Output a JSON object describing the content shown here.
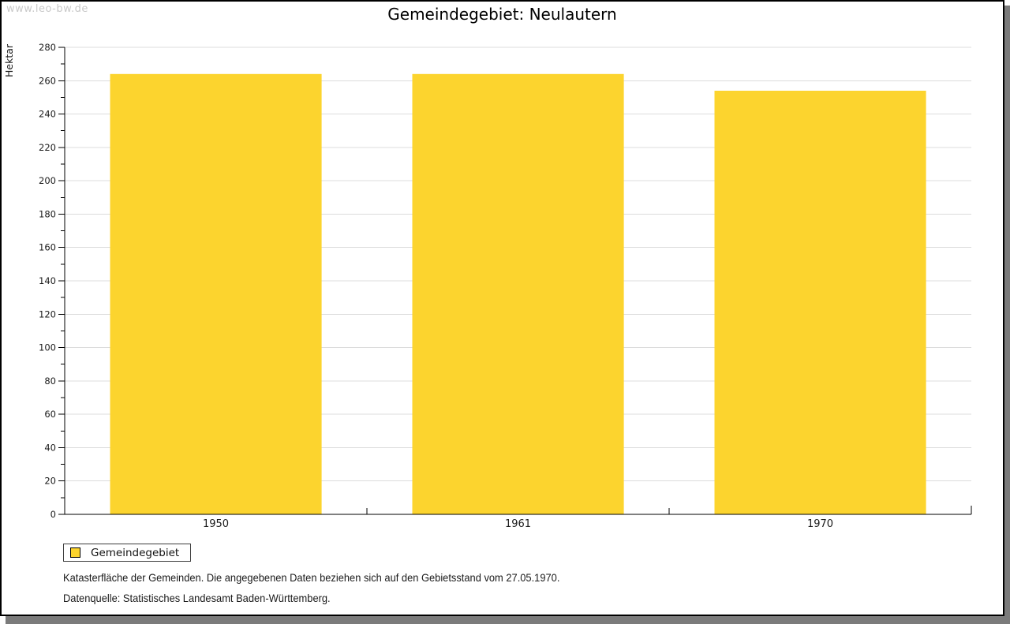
{
  "watermark": "www.leo-bw.de",
  "title": "Gemeindegebiet: Neulautern",
  "legend": {
    "label": "Gemeindegebiet",
    "swatch_color": "#fcd42e"
  },
  "notes": [
    "Katasterfläche der Gemeinden. Die angegebenen Daten beziehen sich auf den Gebietsstand vom 27.05.1970.",
    "Datenquelle: Statistisches Landesamt Baden-Württemberg."
  ],
  "colors": {
    "bar": "#fcd42e",
    "axis": "#000000",
    "gridline": "#dcdcdc",
    "tick_label": "#1a1a1a",
    "shadow": "#7b7b7b",
    "watermark": "#c9c9c9"
  },
  "chart_data": {
    "type": "bar",
    "title": "Gemeindegebiet: Neulautern",
    "categories": [
      "1950",
      "1961",
      "1970"
    ],
    "series": [
      {
        "name": "Gemeindegebiet",
        "values": [
          264,
          264,
          254
        ]
      }
    ],
    "xlabel": "",
    "ylabel": "Hektar",
    "ylim": [
      0,
      280
    ],
    "ytick_step": 20,
    "minor_tick_step": 10,
    "grid": true,
    "legend_position": "bottom-left"
  }
}
